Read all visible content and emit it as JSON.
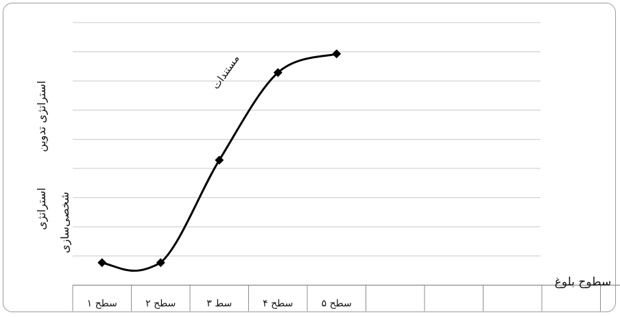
{
  "chart_data": {
    "type": "line",
    "categories": [
      "سطح ۱",
      "سطح ۲",
      "سط ۳",
      "سطح ۴",
      "سطح ۵"
    ],
    "series": [
      {
        "values": [
          0.9,
          0.9,
          5.0,
          8.5,
          9.25
        ]
      }
    ],
    "ylim": [
      0,
      10.5
    ],
    "grid": true,
    "smooth": true,
    "marker": "diamond",
    "xlabel": "سطوح بلوغ",
    "ylabel_upper": "استراتژی تدوین",
    "ylabel_lower": "استراتژی",
    "ylabel_lower2": "شخصی‌سازی",
    "annotation": "مستندات",
    "colors": {
      "line": "#000000",
      "grid": "#c8c8c8",
      "axis": "#8c8c8c",
      "frame": "#9a9a9a"
    }
  }
}
